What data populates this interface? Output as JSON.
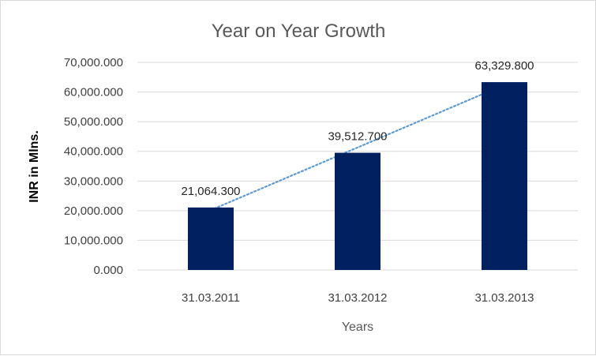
{
  "chart_data": {
    "type": "bar",
    "title": "Year on Year Growth",
    "xlabel": "Years",
    "ylabel": "INR in Mlns.",
    "categories": [
      "31.03.2011",
      "31.03.2012",
      "31.03.2013"
    ],
    "values": [
      21064.3,
      39512.7,
      63329.8
    ],
    "data_labels": [
      "21,064.300",
      "39,512.700",
      "63,329.800"
    ],
    "ylim": [
      0,
      70000
    ],
    "yticks": [
      0,
      10000,
      20000,
      30000,
      40000,
      50000,
      60000,
      70000
    ],
    "ytick_labels": [
      "0.000",
      "10,000.000",
      "20,000.000",
      "30,000.000",
      "40,000.000",
      "50,000.000",
      "60,000.000",
      "70,000.000"
    ],
    "grid": true,
    "legend": "none",
    "trendline": "linear",
    "colors": {
      "bar": "#002060",
      "trendline": "#5b9bd5",
      "grid": "#d9d9d9"
    }
  }
}
